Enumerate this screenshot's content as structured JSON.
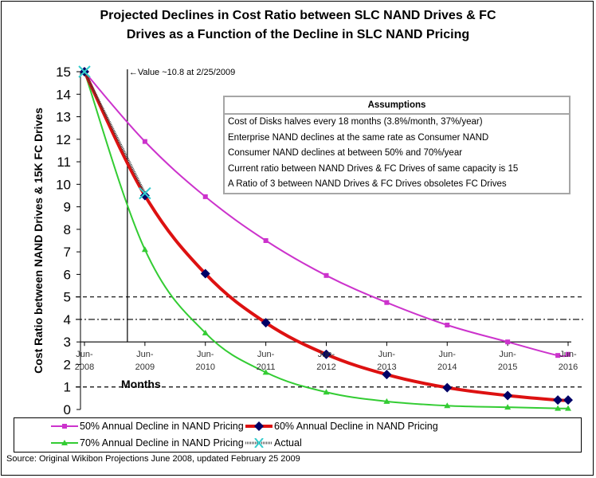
{
  "chart_data": {
    "type": "line",
    "title": "Projected Declines in Cost Ratio between SLC NAND Drives & FC Drives as a Function of the Decline in SLC NAND Pricing",
    "title_lines": [
      "Projected Declines in Cost Ratio between SLC NAND Drives & FC",
      "Drives as a Function of the Decline in SLC NAND Pricing"
    ],
    "xlabel": "Months",
    "ylabel": "Cost Ratio between NAND Drives & 15K FC Drives",
    "ylim": [
      0,
      15
    ],
    "y_ticks": [
      "0",
      "1",
      "2",
      "3",
      "4",
      "5",
      "6",
      "7",
      "8",
      "9",
      "10",
      "11",
      "12",
      "13",
      "14",
      "15"
    ],
    "x_ticks": [
      {
        "top": "Jun-",
        "bottom": "2008"
      },
      {
        "top": "Jun-",
        "bottom": "2009"
      },
      {
        "top": "Jun-",
        "bottom": "2010"
      },
      {
        "top": "Jun-",
        "bottom": "2011"
      },
      {
        "top": "Jun-",
        "bottom": "2012"
      },
      {
        "top": "Jun-",
        "bottom": "2013"
      },
      {
        "top": "Jun-",
        "bottom": "2014"
      },
      {
        "top": "Jun-",
        "bottom": "2015"
      },
      {
        "top": "Jun-",
        "bottom": "2016"
      }
    ],
    "x_unit": "years since Jun-2008",
    "xlim": [
      0,
      8
    ],
    "x_axis_crosses_y": 3,
    "x": [
      0,
      1,
      2,
      3,
      4,
      5,
      6,
      7,
      7.83,
      8
    ],
    "series": [
      {
        "name": "50% Annual Decline in NAND Pricing",
        "color": "#cc33cc",
        "marker": "square",
        "values": [
          15,
          11.9,
          9.45,
          7.5,
          5.95,
          4.75,
          3.75,
          3.0,
          2.4,
          2.45
        ]
      },
      {
        "name": "60% Annual Decline in NAND Pricing",
        "color": "#dd1111",
        "marker": "diamond",
        "marker_color": "#000066",
        "values": [
          15,
          9.5,
          6.03,
          3.85,
          2.45,
          1.55,
          0.97,
          0.62,
          0.42,
          0.42
        ]
      },
      {
        "name": "70% Annual Decline in NAND Pricing",
        "color": "#33cc33",
        "marker": "triangle",
        "values": [
          15,
          7.1,
          3.4,
          1.65,
          0.77,
          0.36,
          0.17,
          0.1,
          0.05,
          0.05
        ]
      },
      {
        "name": "Actual",
        "color": "#333333",
        "marker": "x",
        "marker_color": "#33cccc",
        "x": [
          0,
          1
        ],
        "values": [
          15,
          9.6
        ]
      }
    ],
    "reference_lines": [
      {
        "y": 5,
        "style": "dashed"
      },
      {
        "y": 4,
        "style": "dash-dot"
      },
      {
        "y": 1,
        "style": "dashed"
      }
    ],
    "vertical_marker": {
      "x": 0.71,
      "label": "←Value ~10.8 at 2/25/2009"
    },
    "legend_position": "bottom",
    "grid": false
  },
  "assumptions": {
    "title": "Assumptions",
    "items": [
      "Cost of Disks halves every 18 months (3.8%/month, 37%/year)",
      "Enterprise NAND declines at the same rate as Consumer NAND",
      "Consumer NAND declines at between 50% and 70%/year",
      "Current ratio between NAND Drives & FC Drives of same capacity is 15",
      "A Ratio of 3 between NAND Drives & FC Drives obsoletes FC Drives"
    ]
  },
  "source": "Source: Original Wikibon Projections June 2008, updated February 25 2009"
}
